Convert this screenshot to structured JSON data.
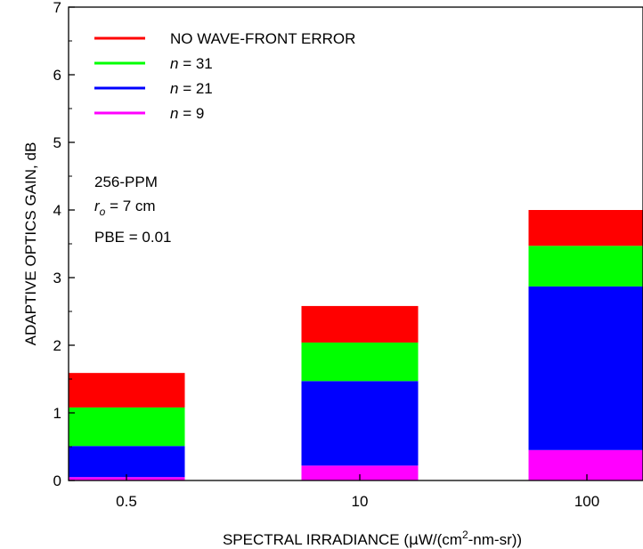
{
  "chart_data": {
    "type": "bar",
    "stacked": true,
    "categories": [
      "0.5",
      "10",
      "100"
    ],
    "series": [
      {
        "name": "n = 9",
        "name_var": "n",
        "name_rest": " = 9",
        "color": "#ff00ff",
        "values": [
          0.05,
          0.22,
          0.45
        ]
      },
      {
        "name": "n = 21",
        "name_var": "n",
        "name_rest": " = 21",
        "color": "#0000ff",
        "values": [
          0.46,
          1.25,
          2.42
        ]
      },
      {
        "name": "n = 31",
        "name_var": "n",
        "name_rest": " = 31",
        "color": "#00ff00",
        "values": [
          0.57,
          0.57,
          0.6
        ]
      },
      {
        "name": "NO WAVE-FRONT ERROR",
        "name_var": "",
        "name_rest": "NO WAVE-FRONT ERROR",
        "color": "#ff0000",
        "values": [
          0.51,
          0.54,
          0.53
        ]
      }
    ],
    "cumulative_top": [
      1.59,
      2.58,
      4.0
    ],
    "legend_order": [
      3,
      2,
      1,
      0
    ],
    "xlabel": {
      "pre": "SPECTRAL IRRADIANCE (",
      "mu": "μ",
      "mid": "W/(cm",
      "sup": "2",
      "post": "-nm-sr))"
    },
    "ylabel": "ADAPTIVE OPTICS GAIN, dB",
    "ylim": [
      0,
      7
    ],
    "yticks": [
      "0",
      "1",
      "2",
      "3",
      "4",
      "5",
      "6",
      "7"
    ],
    "annotations": {
      "line1": "256-PPM",
      "line2_var": "r",
      "line2_sub": "o",
      "line2_rest": " = 7 cm",
      "line3": "PBE = 0.01"
    },
    "grid": false,
    "legend_position": "top-left"
  }
}
